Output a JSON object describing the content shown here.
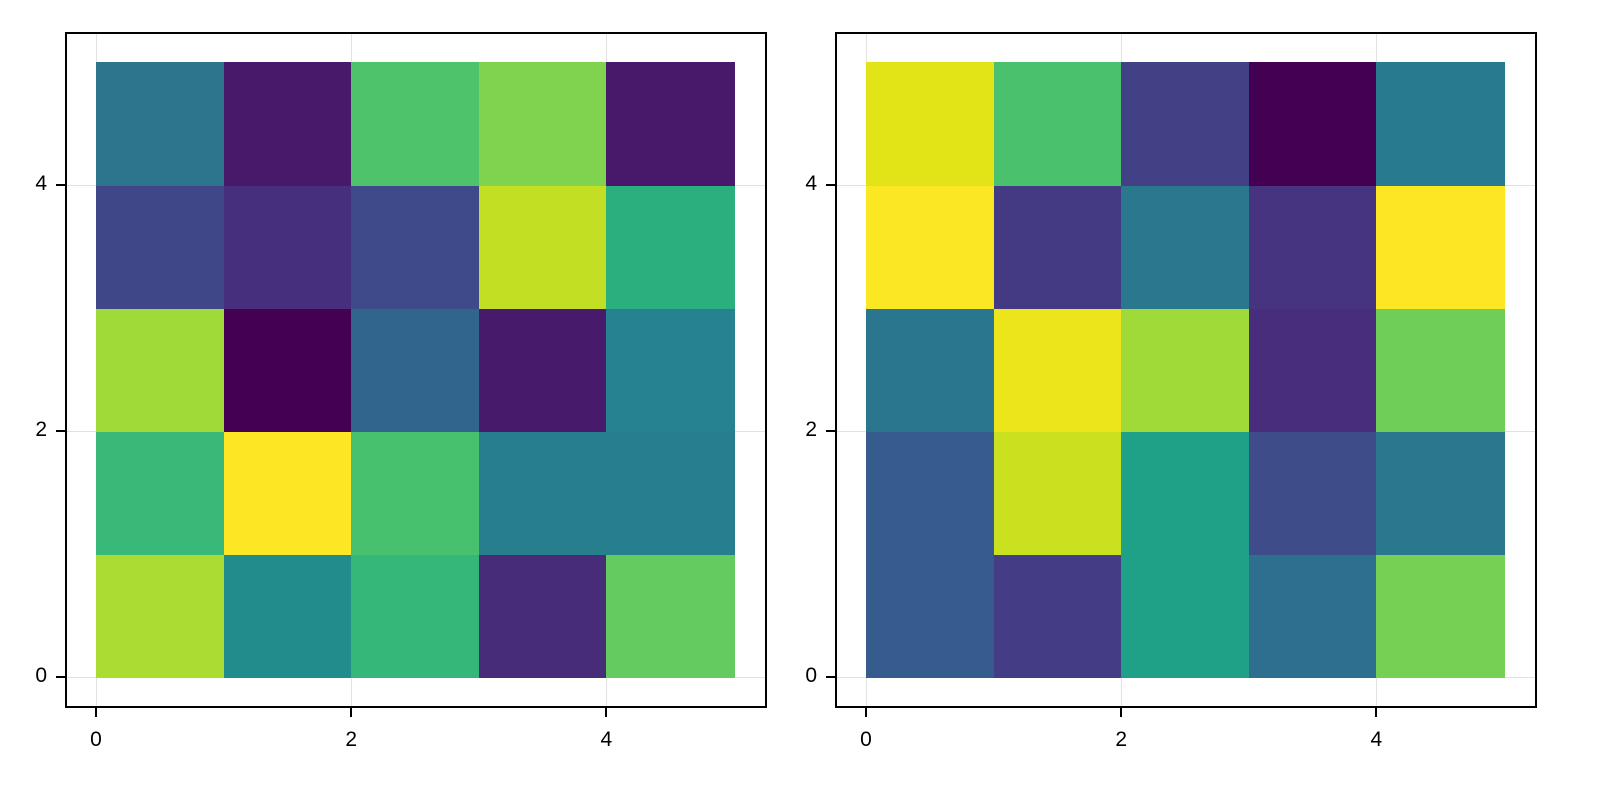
{
  "chart_data": [
    {
      "type": "heatmap",
      "title": "",
      "xlabel": "",
      "ylabel": "",
      "x_ticks": [
        "0",
        "2",
        "4"
      ],
      "y_ticks": [
        "0",
        "2",
        "4"
      ],
      "xlim": [
        -0.25,
        5.25
      ],
      "ylim": [
        -0.25,
        5.25
      ],
      "colormap": "viridis",
      "grid": true,
      "rows_bottom_to_top": [
        {
          "y": 0,
          "values": [
            0.85,
            0.47,
            0.69,
            0.13,
            0.78
          ],
          "colors": [
            "#AADC32",
            "#228C8D",
            "#35B779",
            "#472C7A",
            "#63CB5F"
          ]
        },
        {
          "y": 1,
          "values": [
            0.68,
            1.0,
            0.73,
            0.42,
            0.42
          ],
          "colors": [
            "#38B977",
            "#FDE725",
            "#48C16E",
            "#277F8E",
            "#277F8E"
          ]
        },
        {
          "y": 2,
          "values": [
            0.83,
            0.0,
            0.33,
            0.07,
            0.45
          ],
          "colors": [
            "#A0DA39",
            "#440154",
            "#32658E",
            "#481A6C",
            "#25828E"
          ]
        },
        {
          "y": 3,
          "values": [
            0.22,
            0.14,
            0.23,
            0.9,
            0.64
          ],
          "colors": [
            "#3F4788",
            "#46307E",
            "#3E4A89",
            "#C2DF23",
            "#2BAF7F"
          ]
        },
        {
          "y": 4,
          "values": [
            0.38,
            0.05,
            0.74,
            0.8,
            0.05
          ],
          "colors": [
            "#2C758D",
            "#48186A",
            "#4EC36B",
            "#7FD34E",
            "#48186A"
          ]
        }
      ]
    },
    {
      "type": "heatmap",
      "title": "",
      "xlabel": "",
      "ylabel": "",
      "x_ticks": [
        "0",
        "2",
        "4"
      ],
      "y_ticks": [
        "0",
        "2",
        "4"
      ],
      "xlim": [
        -0.25,
        5.25
      ],
      "ylim": [
        -0.25,
        5.25
      ],
      "colormap": "viridis",
      "grid": true,
      "rows_bottom_to_top": [
        {
          "y": 0,
          "values": [
            0.28,
            0.18,
            0.57,
            0.35,
            0.8
          ],
          "colors": [
            "#365C8D",
            "#443C84",
            "#1FA188",
            "#2E6E8E",
            "#75D054"
          ]
        },
        {
          "y": 1,
          "values": [
            0.28,
            0.92,
            0.57,
            0.23,
            0.4
          ],
          "colors": [
            "#365C8D",
            "#CAE11F",
            "#1FA188",
            "#3E4C8A",
            "#2A788E"
          ]
        },
        {
          "y": 2,
          "values": [
            0.4,
            0.97,
            0.83,
            0.13,
            0.79
          ],
          "colors": [
            "#2A768E",
            "#ECE51B",
            "#A0DA39",
            "#472D7B",
            "#6ECE58"
          ]
        },
        {
          "y": 3,
          "values": [
            1.0,
            0.18,
            0.41,
            0.15,
            1.0
          ],
          "colors": [
            "#FBE723",
            "#443A83",
            "#2A788E",
            "#463480",
            "#FDE725"
          ]
        },
        {
          "y": 4,
          "values": [
            0.95,
            0.73,
            0.19,
            0.0,
            0.39
          ],
          "colors": [
            "#E2E418",
            "#4AC16D",
            "#424186",
            "#440154",
            "#287A8E"
          ]
        }
      ]
    }
  ]
}
